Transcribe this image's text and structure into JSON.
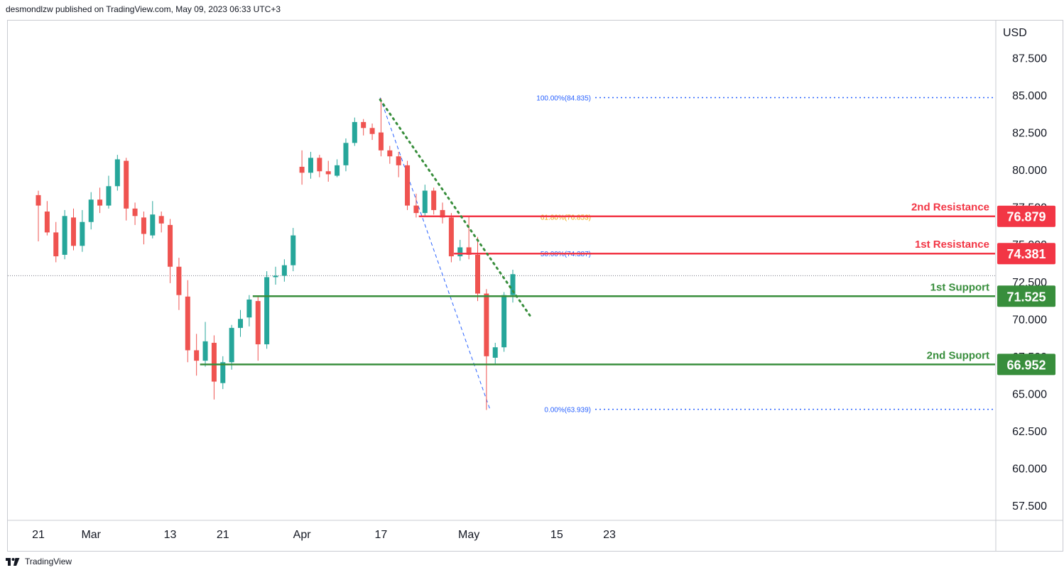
{
  "header": {
    "publisher_line": "desmondlzw published on TradingView.com, May 09, 2023 06:33 UTC+3"
  },
  "footer": {
    "brand": "TradingView",
    "logo_icon": "tradingview-logo-icon"
  },
  "colors": {
    "up": "#26a69a",
    "down": "#ef5350",
    "resistance": "#f23645",
    "support": "#388e3c",
    "fib": "#2962ff",
    "fib_label": "#2962ff",
    "fib618": "#f0a30a",
    "trendline": "#388e3c"
  },
  "chart_data": {
    "type": "candlestick",
    "currency_label": "USD",
    "y_ticks": [
      "57.500",
      "60.000",
      "62.500",
      "65.000",
      "67.500",
      "70.000",
      "72.500",
      "75.000",
      "77.500",
      "80.000",
      "82.500",
      "85.000",
      "87.500"
    ],
    "y_range": [
      56.5,
      90.0
    ],
    "x_labels": [
      {
        "label": "21",
        "bar": 0
      },
      {
        "label": "Mar",
        "bar": 6
      },
      {
        "label": "13",
        "bar": 15
      },
      {
        "label": "21",
        "bar": 21
      },
      {
        "label": "Apr",
        "bar": 30
      },
      {
        "label": "17",
        "bar": 39
      },
      {
        "label": "May",
        "bar": 49
      },
      {
        "label": "15",
        "bar": 59
      },
      {
        "label": "23",
        "bar": 65
      }
    ],
    "last_price": 72.9,
    "levels": [
      {
        "name": "2nd Resistance",
        "value": "76.879",
        "price": 76.879,
        "kind": "resistance",
        "start_bar": 43.3
      },
      {
        "name": "1st Resistance",
        "value": "74.381",
        "price": 74.381,
        "kind": "resistance",
        "start_bar": 47.3
      },
      {
        "name": "1st Support",
        "value": "71.525",
        "price": 71.525,
        "kind": "support",
        "start_bar": 24.4
      },
      {
        "name": "2nd Support",
        "value": "66.952",
        "price": 66.952,
        "kind": "support",
        "start_bar": 18.4
      }
    ],
    "fibonacci": [
      {
        "label": "100.00%(84.835)",
        "price": 84.835,
        "style": "blue"
      },
      {
        "label": "61.80%(76.853)",
        "price": 76.853,
        "style": "orange"
      },
      {
        "label": "50.00%(74.387)",
        "price": 74.387,
        "style": "blue"
      },
      {
        "label": "0.00%(63.939)",
        "price": 63.939,
        "style": "blue"
      }
    ],
    "fib_anchor": {
      "from_bar": 38.9,
      "from_price": 84.835,
      "to_bar": 51.4,
      "to_price": 63.939
    },
    "trendline": {
      "from_bar": 38.9,
      "from_price": 84.7,
      "to_bar": 56.1,
      "to_price": 70.1
    },
    "candles": [
      [
        78.3,
        77.6,
        78.6,
        75.2
      ],
      [
        77.2,
        75.8,
        77.9,
        75.6
      ],
      [
        75.8,
        74.2,
        76.5,
        73.8
      ],
      [
        74.3,
        76.9,
        77.3,
        74.0
      ],
      [
        76.8,
        74.9,
        77.4,
        74.6
      ],
      [
        74.9,
        76.5,
        77.3,
        74.5
      ],
      [
        76.5,
        78.0,
        78.5,
        76.0
      ],
      [
        78.0,
        77.6,
        78.8,
        77.1
      ],
      [
        77.6,
        78.9,
        79.6,
        77.4
      ],
      [
        78.9,
        80.7,
        81.0,
        78.6
      ],
      [
        80.6,
        77.4,
        80.8,
        76.6
      ],
      [
        77.4,
        76.9,
        77.8,
        76.3
      ],
      [
        76.8,
        75.7,
        77.2,
        75.0
      ],
      [
        75.6,
        77.0,
        77.9,
        75.4
      ],
      [
        76.9,
        76.4,
        77.2,
        75.8
      ],
      [
        76.3,
        73.5,
        76.7,
        72.4
      ],
      [
        73.5,
        71.6,
        74.1,
        70.6
      ],
      [
        71.5,
        67.9,
        72.6,
        67.1
      ],
      [
        67.9,
        67.2,
        69.0,
        66.2
      ],
      [
        67.2,
        68.5,
        69.8,
        66.8
      ],
      [
        68.4,
        65.8,
        68.9,
        64.6
      ],
      [
        65.7,
        67.1,
        67.5,
        65.3
      ],
      [
        67.1,
        69.4,
        69.6,
        66.6
      ],
      [
        69.4,
        70.0,
        70.6,
        68.8
      ],
      [
        70.1,
        71.3,
        71.6,
        69.5
      ],
      [
        71.2,
        68.3,
        71.5,
        67.2
      ],
      [
        68.3,
        72.8,
        73.2,
        68.0
      ],
      [
        72.8,
        72.9,
        73.5,
        72.3
      ],
      [
        72.9,
        73.6,
        74.0,
        72.5
      ],
      [
        73.6,
        75.6,
        76.1,
        73.2
      ],
      [
        80.2,
        79.8,
        81.3,
        79.0
      ],
      [
        79.8,
        80.8,
        81.2,
        79.4
      ],
      [
        80.8,
        79.9,
        81.0,
        79.5
      ],
      [
        79.9,
        79.7,
        80.6,
        79.2
      ],
      [
        79.6,
        80.3,
        80.7,
        79.5
      ],
      [
        80.3,
        81.8,
        82.1,
        79.9
      ],
      [
        81.8,
        83.2,
        83.5,
        81.6
      ],
      [
        83.2,
        82.8,
        83.4,
        82.3
      ],
      [
        82.8,
        82.4,
        83.1,
        82.0
      ],
      [
        82.5,
        81.3,
        84.8,
        80.9
      ],
      [
        81.3,
        80.9,
        81.6,
        80.4
      ],
      [
        80.9,
        80.3,
        81.2,
        79.5
      ],
      [
        80.3,
        77.6,
        80.6,
        77.3
      ],
      [
        77.6,
        77.1,
        78.4,
        76.8
      ],
      [
        77.1,
        78.6,
        79.0,
        76.9
      ],
      [
        78.6,
        77.3,
        78.8,
        77.0
      ],
      [
        77.3,
        76.8,
        77.8,
        76.4
      ],
      [
        76.8,
        74.2,
        77.1,
        73.8
      ],
      [
        74.2,
        74.8,
        75.3,
        73.9
      ],
      [
        74.8,
        74.3,
        76.9,
        74.0
      ],
      [
        74.3,
        71.7,
        75.5,
        71.2
      ],
      [
        71.7,
        67.5,
        72.0,
        63.9
      ],
      [
        67.4,
        68.1,
        68.4,
        67.0
      ],
      [
        68.1,
        71.6,
        71.8,
        67.8
      ],
      [
        71.6,
        73.0,
        73.3,
        71.1
      ]
    ]
  }
}
